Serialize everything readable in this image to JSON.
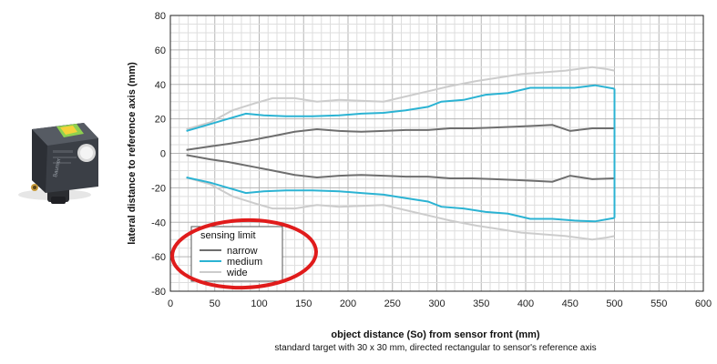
{
  "chart_data": {
    "type": "line",
    "title": "",
    "xlabel": "object distance (So) from sensor front (mm)",
    "ylabel": "lateral distance to reference axis (mm)",
    "note": "standard target with 30 x 30 mm, directed rectangular to sensor's reference axis",
    "xlim": [
      0,
      600
    ],
    "ylim": [
      -80,
      80
    ],
    "x_ticks": [
      "0",
      "50",
      "100",
      "150",
      "200",
      "250",
      "300",
      "350",
      "400",
      "450",
      "500",
      "550",
      "600"
    ],
    "y_ticks": [
      "80",
      "60",
      "40",
      "20",
      "0",
      "-20",
      "-40",
      "-60",
      "-80"
    ],
    "grid": true,
    "legend": {
      "title": "sensing limit",
      "placement": "bottom-left"
    },
    "series": [
      {
        "name": "narrow",
        "color": "#6e6e6e",
        "upper": [
          [
            18,
            2
          ],
          [
            45,
            4
          ],
          [
            65,
            5.5
          ],
          [
            90,
            7.5
          ],
          [
            115,
            10
          ],
          [
            140,
            12.5
          ],
          [
            165,
            14
          ],
          [
            190,
            13
          ],
          [
            215,
            12.5
          ],
          [
            240,
            13
          ],
          [
            265,
            13.5
          ],
          [
            290,
            13.5
          ],
          [
            315,
            14.5
          ],
          [
            340,
            14.5
          ],
          [
            365,
            15
          ],
          [
            390,
            15.5
          ],
          [
            410,
            16
          ],
          [
            430,
            16.5
          ],
          [
            450,
            13
          ],
          [
            475,
            14.5
          ],
          [
            500,
            14.5
          ]
        ],
        "lower": [
          [
            18,
            -1
          ],
          [
            45,
            -3.5
          ],
          [
            65,
            -5
          ],
          [
            90,
            -7.5
          ],
          [
            115,
            -10
          ],
          [
            140,
            -12.5
          ],
          [
            165,
            -14
          ],
          [
            190,
            -13
          ],
          [
            215,
            -12.5
          ],
          [
            240,
            -13
          ],
          [
            265,
            -13.5
          ],
          [
            290,
            -13.5
          ],
          [
            315,
            -14.5
          ],
          [
            340,
            -14.5
          ],
          [
            365,
            -15
          ],
          [
            390,
            -15.5
          ],
          [
            410,
            -16
          ],
          [
            430,
            -16.5
          ],
          [
            450,
            -13
          ],
          [
            475,
            -15
          ],
          [
            500,
            -14.5
          ]
        ]
      },
      {
        "name": "medium",
        "color": "#2bb3d3",
        "upper": [
          [
            18,
            13
          ],
          [
            45,
            17
          ],
          [
            65,
            20
          ],
          [
            85,
            23
          ],
          [
            105,
            22
          ],
          [
            130,
            21.5
          ],
          [
            160,
            21.5
          ],
          [
            190,
            22
          ],
          [
            215,
            23
          ],
          [
            240,
            23.5
          ],
          [
            265,
            25
          ],
          [
            290,
            27
          ],
          [
            305,
            30
          ],
          [
            330,
            31
          ],
          [
            355,
            34
          ],
          [
            380,
            35
          ],
          [
            405,
            38
          ],
          [
            430,
            38
          ],
          [
            455,
            38
          ],
          [
            478,
            39.5
          ],
          [
            500,
            37.5
          ]
        ],
        "lower": [
          [
            18,
            -14
          ],
          [
            45,
            -17
          ],
          [
            65,
            -20
          ],
          [
            85,
            -23
          ],
          [
            105,
            -22
          ],
          [
            130,
            -21.5
          ],
          [
            160,
            -21.5
          ],
          [
            190,
            -22
          ],
          [
            215,
            -23
          ],
          [
            240,
            -24
          ],
          [
            265,
            -26
          ],
          [
            290,
            -28
          ],
          [
            305,
            -31
          ],
          [
            330,
            -32
          ],
          [
            355,
            -34
          ],
          [
            380,
            -35
          ],
          [
            405,
            -38
          ],
          [
            430,
            -38
          ],
          [
            455,
            -39
          ],
          [
            478,
            -39.5
          ],
          [
            500,
            -37.5
          ]
        ]
      },
      {
        "name": "wide",
        "color": "#cccccc",
        "upper": [
          [
            18,
            14
          ],
          [
            45,
            18
          ],
          [
            70,
            25
          ],
          [
            95,
            29
          ],
          [
            115,
            32
          ],
          [
            140,
            32
          ],
          [
            165,
            30
          ],
          [
            190,
            31
          ],
          [
            215,
            30.5
          ],
          [
            240,
            30
          ],
          [
            265,
            33
          ],
          [
            290,
            36
          ],
          [
            315,
            39
          ],
          [
            345,
            42
          ],
          [
            370,
            44
          ],
          [
            395,
            46
          ],
          [
            420,
            47
          ],
          [
            445,
            48
          ],
          [
            475,
            50
          ],
          [
            490,
            49
          ],
          [
            500,
            48
          ]
        ],
        "lower": [
          [
            18,
            -14
          ],
          [
            45,
            -18
          ],
          [
            70,
            -25
          ],
          [
            95,
            -29
          ],
          [
            115,
            -32
          ],
          [
            140,
            -32
          ],
          [
            165,
            -30
          ],
          [
            190,
            -31
          ],
          [
            215,
            -30.5
          ],
          [
            240,
            -30
          ],
          [
            265,
            -33
          ],
          [
            290,
            -36
          ],
          [
            315,
            -39
          ],
          [
            345,
            -42
          ],
          [
            370,
            -44
          ],
          [
            395,
            -46
          ],
          [
            420,
            -47
          ],
          [
            445,
            -48
          ],
          [
            475,
            -50
          ],
          [
            490,
            -49
          ],
          [
            500,
            -48
          ]
        ]
      }
    ],
    "end_line": {
      "x": 500,
      "color": "#2bb3d3"
    },
    "highlight_color": "#e01b1b"
  },
  "sensor_photo": {
    "brand_text": "Baumer",
    "body_color": "#3a3d44",
    "label_color": "#8fd14f"
  }
}
